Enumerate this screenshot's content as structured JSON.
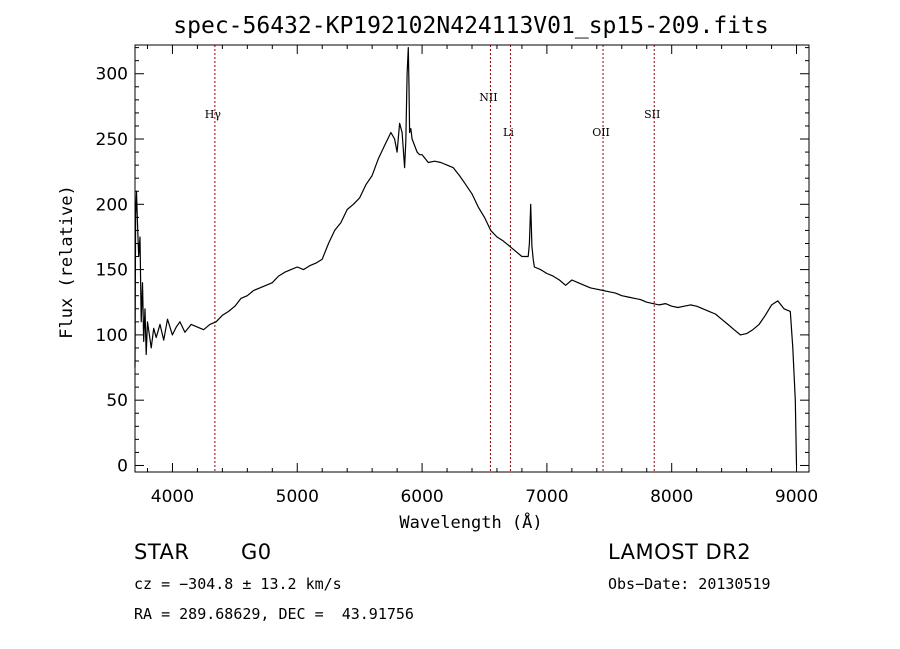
{
  "chart_data": {
    "type": "line",
    "title": "spec-56432-KP192102N424113V01_sp15-209.fits",
    "xlabel": "Wavelength (Å)",
    "ylabel": "Flux (relative)",
    "xlim": [
      3700,
      9100
    ],
    "ylim": [
      -5,
      322
    ],
    "x_ticks": [
      4000,
      5000,
      6000,
      7000,
      8000,
      9000
    ],
    "y_ticks": [
      0,
      50,
      100,
      150,
      200,
      250,
      300
    ],
    "grid": false,
    "line_color": "#000000",
    "marker_color": "#990000",
    "series": [
      {
        "x": [
          3700,
          3705,
          3712,
          3720,
          3730,
          3740,
          3750,
          3760,
          3770,
          3780,
          3790,
          3800,
          3815,
          3830,
          3850,
          3870,
          3900,
          3930,
          3960,
          4000,
          4030,
          4060,
          4100,
          4150,
          4200,
          4250,
          4300,
          4350,
          4400,
          4450,
          4500,
          4550,
          4600,
          4650,
          4700,
          4750,
          4800,
          4850,
          4900,
          4950,
          5000,
          5050,
          5100,
          5150,
          5200,
          5250,
          5300,
          5350,
          5400,
          5450,
          5500,
          5550,
          5600,
          5650,
          5700,
          5750,
          5780,
          5800,
          5820,
          5840,
          5860,
          5870,
          5880,
          5890,
          5895,
          5900,
          5910,
          5920,
          5940,
          5960,
          5980,
          6000,
          6050,
          6100,
          6150,
          6200,
          6250,
          6300,
          6350,
          6400,
          6450,
          6500,
          6550,
          6600,
          6650,
          6700,
          6750,
          6800,
          6850,
          6860,
          6870,
          6880,
          6890,
          6900,
          6950,
          7000,
          7050,
          7100,
          7150,
          7200,
          7250,
          7300,
          7350,
          7400,
          7450,
          7500,
          7550,
          7600,
          7650,
          7700,
          7750,
          7800,
          7850,
          7900,
          7950,
          8000,
          8050,
          8100,
          8150,
          8200,
          8250,
          8300,
          8350,
          8400,
          8450,
          8500,
          8550,
          8600,
          8650,
          8700,
          8750,
          8800,
          8850,
          8900,
          8950,
          8970,
          8990,
          9000
        ],
        "y": [
          75,
          190,
          210,
          185,
          160,
          175,
          110,
          140,
          95,
          120,
          85,
          110,
          100,
          90,
          105,
          98,
          108,
          96,
          112,
          100,
          106,
          110,
          102,
          108,
          106,
          104,
          108,
          110,
          115,
          118,
          122,
          128,
          130,
          134,
          136,
          138,
          140,
          145,
          148,
          150,
          152,
          150,
          153,
          155,
          158,
          170,
          180,
          186,
          196,
          200,
          205,
          215,
          222,
          235,
          245,
          255,
          250,
          240,
          262,
          255,
          228,
          248,
          300,
          320,
          290,
          255,
          258,
          250,
          245,
          240,
          238,
          238,
          232,
          233,
          232,
          230,
          228,
          222,
          215,
          208,
          198,
          190,
          180,
          175,
          172,
          168,
          164,
          160,
          160,
          170,
          200,
          168,
          158,
          152,
          150,
          147,
          145,
          142,
          138,
          142,
          140,
          138,
          136,
          135,
          134,
          133,
          132,
          130,
          129,
          128,
          127,
          125,
          124,
          123,
          124,
          122,
          121,
          122,
          123,
          122,
          120,
          118,
          116,
          112,
          108,
          104,
          100,
          101,
          104,
          108,
          115,
          123,
          126,
          120,
          118,
          90,
          50,
          0
        ]
      }
    ],
    "line_markers": [
      {
        "label": "Hγ",
        "x": 4340
      },
      {
        "label": "NII",
        "x": 6548
      },
      {
        "label": "Li",
        "x": 6708
      },
      {
        "label": "OII",
        "x": 7450
      },
      {
        "label": "SII",
        "x": 7860
      }
    ]
  },
  "info": {
    "class": "STAR",
    "subclass": "G0",
    "survey": "LAMOST DR2",
    "cz": "cz = −304.8 ± 13.2 km/s",
    "obs_date": "Obs−Date: 20130519",
    "coords": "RA = 289.68629, DEC =  43.91756"
  }
}
